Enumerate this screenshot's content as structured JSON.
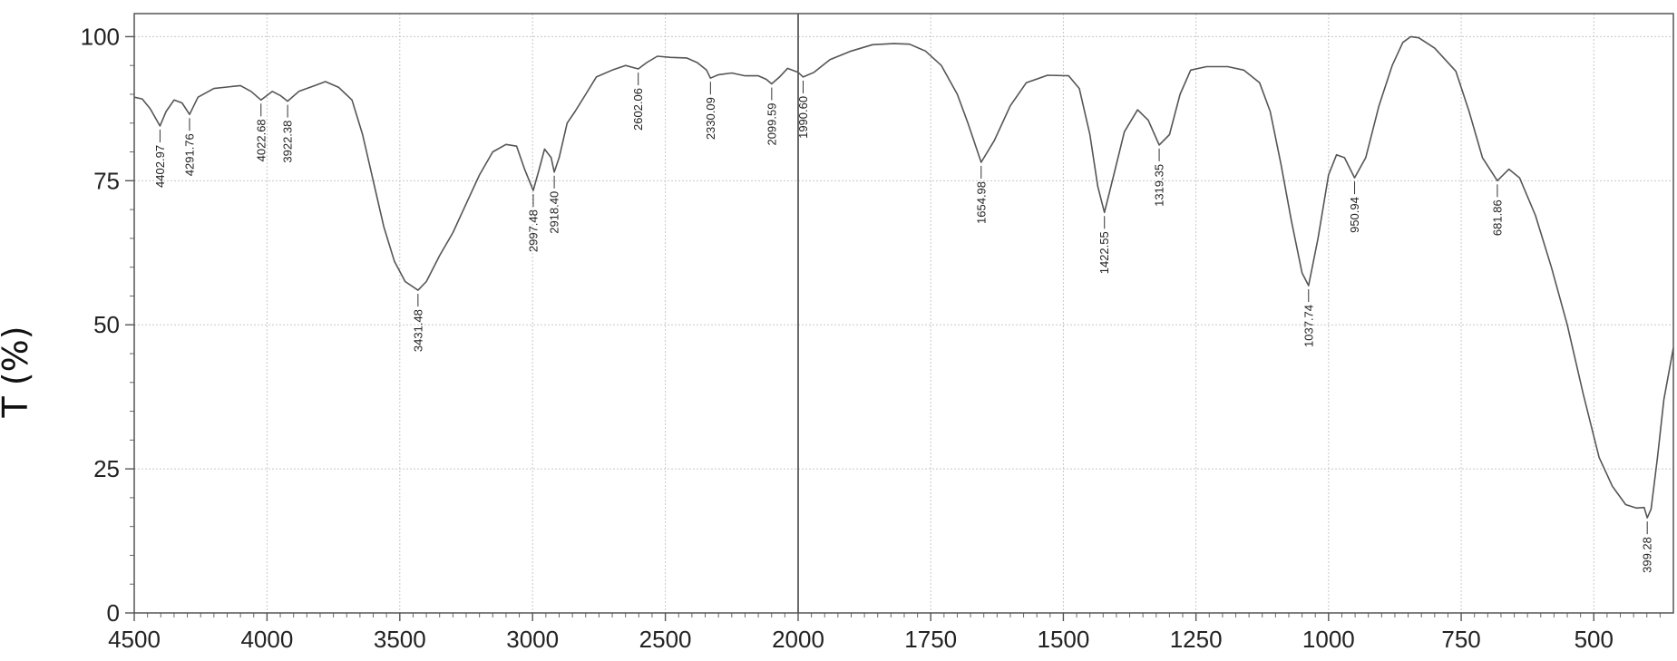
{
  "chart_data": {
    "type": "line",
    "title": "",
    "xlabel": "",
    "ylabel": "T (%)",
    "xlim": [
      4500,
      350
    ],
    "ylim": [
      0,
      104
    ],
    "grid": true,
    "x_axis": "wavenumber, reversed",
    "x_ticks": [
      4500,
      4000,
      3500,
      3000,
      2500,
      2000,
      1750,
      1500,
      1250,
      1000,
      750,
      500
    ],
    "x_tick_labels": [
      "4500",
      "4000",
      "3500",
      "3000",
      "2500",
      "2000",
      "1750",
      "1500",
      "1250",
      "1000",
      "750",
      "500"
    ],
    "y_ticks": [
      0,
      25,
      50,
      75,
      100
    ],
    "y_tick_labels": [
      "0",
      "25",
      "50",
      "75",
      "100"
    ],
    "series": [
      {
        "color": "#555555",
        "points": [
          [
            4500,
            89.5
          ],
          [
            4470,
            89.2
          ],
          [
            4440,
            87.5
          ],
          [
            4402.97,
            84.5
          ],
          [
            4380,
            87
          ],
          [
            4350,
            89
          ],
          [
            4320,
            88.5
          ],
          [
            4291.76,
            86.5
          ],
          [
            4260,
            89.5
          ],
          [
            4200,
            91
          ],
          [
            4100,
            91.5
          ],
          [
            4060,
            90.5
          ],
          [
            4022.68,
            89
          ],
          [
            3980,
            90.5
          ],
          [
            3950,
            89.8
          ],
          [
            3922.38,
            88.8
          ],
          [
            3880,
            90.5
          ],
          [
            3820,
            91.5
          ],
          [
            3780,
            92.2
          ],
          [
            3730,
            91.2
          ],
          [
            3680,
            89
          ],
          [
            3640,
            83
          ],
          [
            3600,
            75
          ],
          [
            3560,
            67
          ],
          [
            3520,
            61
          ],
          [
            3480,
            57.5
          ],
          [
            3431.48,
            56
          ],
          [
            3400,
            57.5
          ],
          [
            3350,
            62
          ],
          [
            3300,
            66
          ],
          [
            3250,
            71
          ],
          [
            3200,
            76
          ],
          [
            3150,
            80
          ],
          [
            3100,
            81.3
          ],
          [
            3060,
            81
          ],
          [
            3030,
            77
          ],
          [
            2997.48,
            73.3
          ],
          [
            2975,
            77
          ],
          [
            2955,
            80.5
          ],
          [
            2930,
            79
          ],
          [
            2918.4,
            76.5
          ],
          [
            2900,
            79
          ],
          [
            2870,
            85
          ],
          [
            2840,
            87
          ],
          [
            2800,
            90
          ],
          [
            2760,
            93
          ],
          [
            2700,
            94.2
          ],
          [
            2650,
            95
          ],
          [
            2602.06,
            94.4
          ],
          [
            2570,
            95.5
          ],
          [
            2530,
            96.6
          ],
          [
            2480,
            96.4
          ],
          [
            2420,
            96.3
          ],
          [
            2380,
            95.5
          ],
          [
            2345,
            94.2
          ],
          [
            2330.09,
            92.8
          ],
          [
            2300,
            93.4
          ],
          [
            2250,
            93.7
          ],
          [
            2200,
            93.2
          ],
          [
            2150,
            93.2
          ],
          [
            2120,
            92.6
          ],
          [
            2099.59,
            91.8
          ],
          [
            2070,
            93
          ],
          [
            2040,
            94.5
          ],
          [
            2000,
            93.8
          ],
          [
            1990.6,
            93.0
          ],
          [
            1970,
            93.8
          ],
          [
            1940,
            96
          ],
          [
            1900,
            97.5
          ],
          [
            1860,
            98.6
          ],
          [
            1820,
            98.8
          ],
          [
            1790,
            98.7
          ],
          [
            1760,
            97.5
          ],
          [
            1730,
            95
          ],
          [
            1700,
            90
          ],
          [
            1680,
            85
          ],
          [
            1654.98,
            78.2
          ],
          [
            1630,
            82
          ],
          [
            1600,
            88
          ],
          [
            1570,
            92
          ],
          [
            1530,
            93.3
          ],
          [
            1490,
            93.2
          ],
          [
            1470,
            91
          ],
          [
            1450,
            83
          ],
          [
            1435,
            74
          ],
          [
            1422.55,
            69.5
          ],
          [
            1405,
            76
          ],
          [
            1385,
            83.5
          ],
          [
            1360,
            87.3
          ],
          [
            1340,
            85.5
          ],
          [
            1319.35,
            81.2
          ],
          [
            1300,
            83
          ],
          [
            1280,
            90
          ],
          [
            1260,
            94.2
          ],
          [
            1230,
            94.8
          ],
          [
            1190,
            94.8
          ],
          [
            1160,
            94.2
          ],
          [
            1130,
            92
          ],
          [
            1110,
            87
          ],
          [
            1090,
            78
          ],
          [
            1070,
            68
          ],
          [
            1050,
            59
          ],
          [
            1037.74,
            56.8
          ],
          [
            1020,
            65
          ],
          [
            1000,
            76
          ],
          [
            985,
            79.5
          ],
          [
            970,
            79
          ],
          [
            950.94,
            75.5
          ],
          [
            930,
            79
          ],
          [
            905,
            88
          ],
          [
            880,
            95
          ],
          [
            860,
            99
          ],
          [
            845,
            100
          ],
          [
            830,
            99.8
          ],
          [
            800,
            98
          ],
          [
            760,
            94
          ],
          [
            735,
            87
          ],
          [
            710,
            79
          ],
          [
            681.86,
            75
          ],
          [
            660,
            77
          ],
          [
            640,
            75.5
          ],
          [
            610,
            69
          ],
          [
            580,
            60
          ],
          [
            550,
            50
          ],
          [
            520,
            38
          ],
          [
            490,
            27
          ],
          [
            465,
            22
          ],
          [
            440,
            18.8
          ],
          [
            420,
            18.2
          ],
          [
            405,
            18.3
          ],
          [
            399.28,
            16.5
          ],
          [
            392,
            18
          ],
          [
            380,
            27
          ],
          [
            368,
            37
          ],
          [
            350,
            46
          ]
        ]
      }
    ],
    "peaks": [
      {
        "x": 4402.97,
        "y": 84.5,
        "label": "4402.97"
      },
      {
        "x": 4291.76,
        "y": 86.5,
        "label": "4291.76"
      },
      {
        "x": 4022.68,
        "y": 89.0,
        "label": "4022.68"
      },
      {
        "x": 3922.38,
        "y": 88.8,
        "label": "3922.38"
      },
      {
        "x": 3431.48,
        "y": 56.0,
        "label": "3431.48"
      },
      {
        "x": 2997.48,
        "y": 73.3,
        "label": "2997.48"
      },
      {
        "x": 2918.4,
        "y": 76.5,
        "label": "2918.40"
      },
      {
        "x": 2602.06,
        "y": 94.4,
        "label": "2602.06"
      },
      {
        "x": 2330.09,
        "y": 92.8,
        "label": "2330.09"
      },
      {
        "x": 2099.59,
        "y": 91.8,
        "label": "2099.59"
      },
      {
        "x": 1990.6,
        "y": 93.0,
        "label": "1990.60"
      },
      {
        "x": 1654.98,
        "y": 78.2,
        "label": "1654.98"
      },
      {
        "x": 1422.55,
        "y": 69.5,
        "label": "1422.55"
      },
      {
        "x": 1319.35,
        "y": 81.2,
        "label": "1319.35"
      },
      {
        "x": 1037.74,
        "y": 56.8,
        "label": "1037.74"
      },
      {
        "x": 950.94,
        "y": 75.5,
        "label": "950.94"
      },
      {
        "x": 681.86,
        "y": 75.0,
        "label": "681.86"
      },
      {
        "x": 399.28,
        "y": 16.5,
        "label": "399.28"
      }
    ]
  }
}
